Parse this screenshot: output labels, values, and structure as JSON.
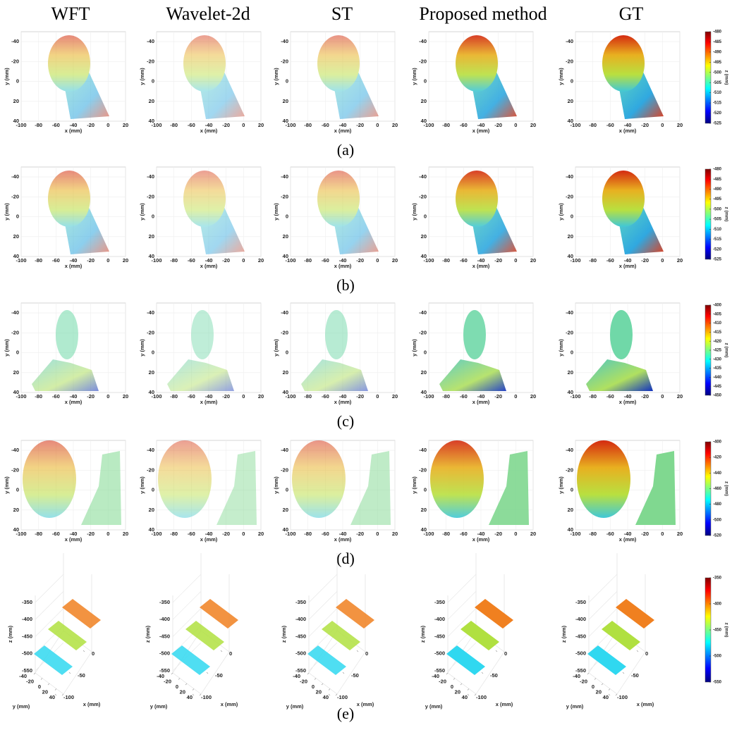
{
  "columns": [
    "WFT",
    "Wavelet-2d",
    "ST",
    "Proposed method",
    "GT"
  ],
  "rows": [
    {
      "label": "(a)",
      "xlabel": "x (mm)",
      "ylabel": "y (mm)",
      "xlim": [
        -100,
        20
      ],
      "xticks": [
        -100,
        -80,
        -60,
        -40,
        -20,
        0,
        20
      ],
      "ylim": [
        -50,
        40
      ],
      "yticks": [
        -40,
        -20,
        0,
        20,
        40
      ],
      "colorbar": {
        "label": "z (mm)",
        "lim": [
          -480,
          -525
        ],
        "ticks": [
          -480,
          -485,
          -490,
          -495,
          -500,
          -505,
          -510,
          -515,
          -520,
          -525
        ]
      }
    },
    {
      "label": "(b)",
      "xlabel": "x (mm)",
      "ylabel": "y (mm)",
      "xlim": [
        -100,
        20
      ],
      "xticks": [
        -100,
        -80,
        -60,
        -40,
        -20,
        0,
        20
      ],
      "ylim": [
        -50,
        40
      ],
      "yticks": [
        -40,
        -20,
        0,
        20,
        40
      ],
      "colorbar": {
        "label": "z (mm)",
        "lim": [
          -480,
          -525
        ],
        "ticks": [
          -480,
          -485,
          -490,
          -495,
          -500,
          -505,
          -510,
          -515,
          -520,
          -525
        ]
      }
    },
    {
      "label": "(c)",
      "xlabel": "x (mm)",
      "ylabel": "y (mm)",
      "xlim": [
        -100,
        20
      ],
      "xticks": [
        -100,
        -80,
        -60,
        -40,
        -20,
        0,
        20
      ],
      "ylim": [
        -50,
        40
      ],
      "yticks": [
        -40,
        -20,
        0,
        20,
        40
      ],
      "colorbar": {
        "label": "z (mm)",
        "lim": [
          -400,
          -450
        ],
        "ticks": [
          -400,
          -405,
          -410,
          -415,
          -420,
          -425,
          -430,
          -435,
          -440,
          -445,
          -450
        ]
      }
    },
    {
      "label": "(d)",
      "xlabel": "x (mm)",
      "ylabel": "y (mm)",
      "xlim": [
        -100,
        20
      ],
      "xticks": [
        -100,
        -80,
        -60,
        -40,
        -20,
        0,
        20
      ],
      "ylim": [
        -50,
        40
      ],
      "yticks": [
        -40,
        -20,
        0,
        20,
        40
      ],
      "colorbar": {
        "label": "z (mm)",
        "lim": [
          -400,
          -520
        ],
        "ticks": [
          -400,
          -420,
          -440,
          -460,
          -480,
          -500,
          -520
        ]
      }
    },
    {
      "label": "(e)",
      "xlabel": "x (mm)",
      "ylabel": "y (mm)",
      "zlabel": "z (mm)",
      "xlim": [
        0,
        -100
      ],
      "xticks": [
        0,
        -50,
        -100
      ],
      "ylim": [
        -40,
        40
      ],
      "yticks": [
        -40,
        -20,
        0,
        20,
        40
      ],
      "zlim": [
        -350,
        -550
      ],
      "zticks": [
        -350,
        -400,
        -450,
        -500,
        -550
      ],
      "colorbar": {
        "label": "z (mm)",
        "lim": [
          -350,
          -550
        ],
        "ticks": [
          -350,
          -400,
          -450,
          -500,
          -550
        ]
      }
    }
  ]
}
